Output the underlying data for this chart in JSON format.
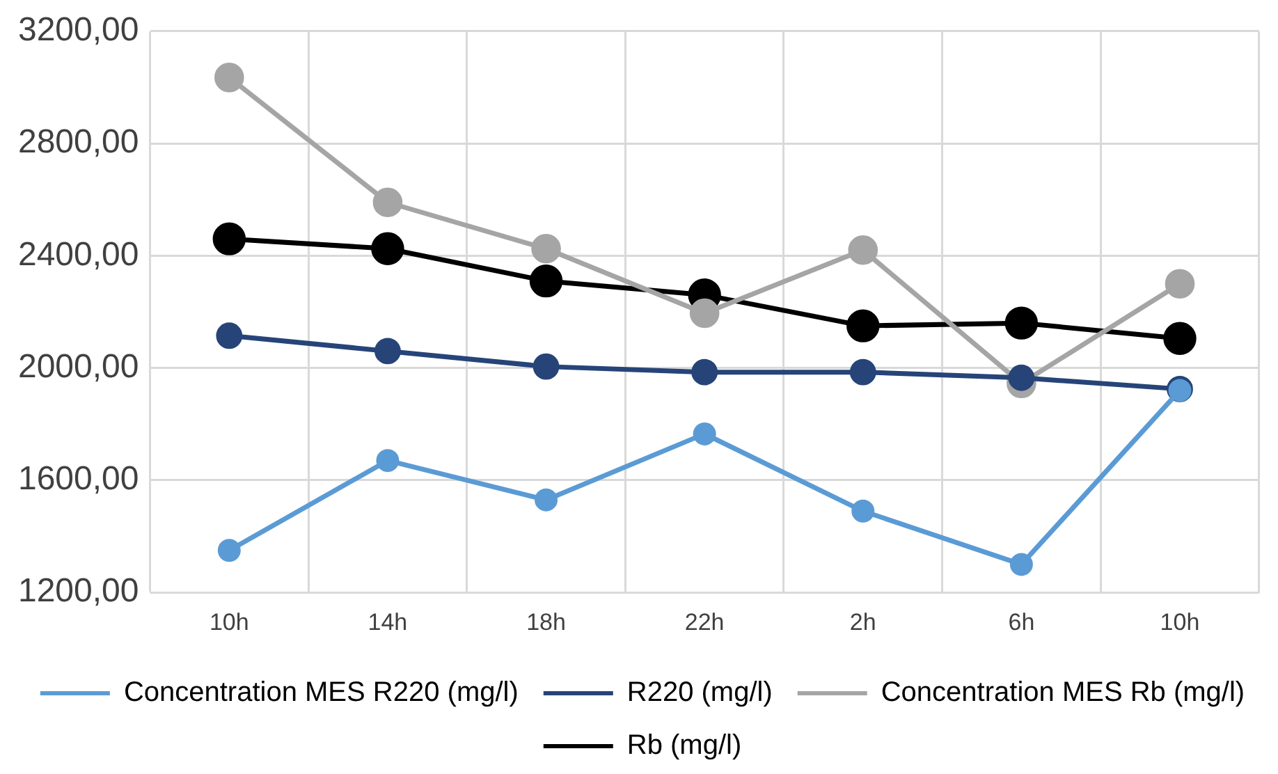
{
  "chart_data": {
    "type": "line",
    "categories": [
      "10h",
      "14h",
      "18h",
      "22h",
      "2h",
      "6h",
      "10h"
    ],
    "series": [
      {
        "name": "Concentration MES R220 (mg/l)",
        "color": "#5b9bd5",
        "values": [
          1350,
          1670,
          1530,
          1765,
          1490,
          1300,
          1920
        ]
      },
      {
        "name": "R220 (mg/l)",
        "color": "#264478",
        "values": [
          2115,
          2060,
          2005,
          1985,
          1985,
          1965,
          1925
        ]
      },
      {
        "name": "Concentration MES Rb (mg/l)",
        "color": "#a5a5a5",
        "values": [
          3035,
          2590,
          2425,
          2195,
          2420,
          1945,
          2300
        ]
      },
      {
        "name": "Rb (mg/l)",
        "color": "#000000",
        "values": [
          2460,
          2425,
          2310,
          2260,
          2150,
          2160,
          2105
        ]
      }
    ],
    "ylim": [
      1200,
      3200
    ],
    "yticks": [
      {
        "value": 1200,
        "label": "1200,00"
      },
      {
        "value": 1600,
        "label": "1600,00"
      },
      {
        "value": 2000,
        "label": "2000,00"
      },
      {
        "value": 2400,
        "label": "2400,00"
      },
      {
        "value": 2800,
        "label": "2800,00"
      },
      {
        "value": 3200,
        "label": "3200,00"
      }
    ],
    "grid": true,
    "legend": "bottom",
    "marker": "circle",
    "line_style": "solid"
  }
}
